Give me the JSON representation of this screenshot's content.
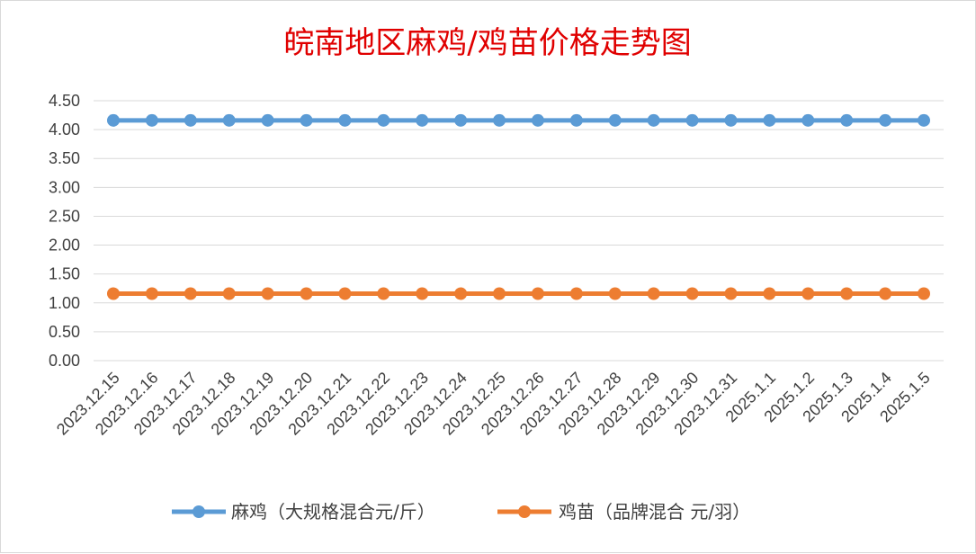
{
  "chart_data": {
    "type": "line",
    "title": "皖南地区麻鸡/鸡苗价格走势图",
    "categories": [
      "2023.12.15",
      "2023.12.16",
      "2023.12.17",
      "2023.12.18",
      "2023.12.19",
      "2023.12.20",
      "2023.12.21",
      "2023.12.22",
      "2023.12.23",
      "2023.12.24",
      "2023.12.25",
      "2023.12.26",
      "2023.12.27",
      "2023.12.28",
      "2023.12.29",
      "2023.12.30",
      "2023.12.31",
      "2025.1.1",
      "2025.1.2",
      "2025.1.3",
      "2025.1.4",
      "2025.1.5"
    ],
    "ylim": [
      0,
      4.5
    ],
    "yticks": [
      "0.00",
      "0.50",
      "1.00",
      "1.50",
      "2.00",
      "2.50",
      "3.00",
      "3.50",
      "4.00",
      "4.50"
    ],
    "grid": true,
    "legend_position": "bottom",
    "series": [
      {
        "name": "麻鸡（大规格混合元/斤）",
        "color": "#5b9bd5",
        "values": [
          4.16,
          4.16,
          4.16,
          4.16,
          4.16,
          4.16,
          4.16,
          4.16,
          4.16,
          4.16,
          4.16,
          4.16,
          4.16,
          4.16,
          4.16,
          4.16,
          4.16,
          4.16,
          4.16,
          4.16,
          4.16,
          4.16
        ]
      },
      {
        "name": "鸡苗（品牌混合 元/羽）",
        "color": "#ed7d31",
        "values": [
          1.16,
          1.16,
          1.16,
          1.16,
          1.16,
          1.16,
          1.16,
          1.16,
          1.16,
          1.16,
          1.16,
          1.16,
          1.16,
          1.16,
          1.16,
          1.16,
          1.16,
          1.16,
          1.16,
          1.16,
          1.16,
          1.16
        ]
      }
    ]
  }
}
